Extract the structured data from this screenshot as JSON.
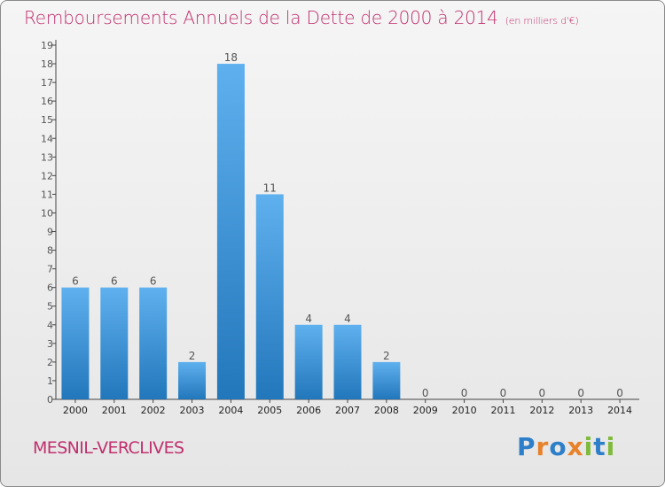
{
  "header": {
    "title": "Remboursements Annuels de la Dette de 2000 à 2014",
    "unit_note": "(en milliers d'€)"
  },
  "footer": {
    "commune": "MESNIL-VERCLIVES",
    "logo_letters": [
      "P",
      "r",
      "o",
      "x",
      "i",
      "t",
      "i"
    ],
    "logo_colors": [
      "#2e7fc9",
      "#e8822a",
      "#2e7fc9",
      "#e8822a",
      "#7fba3a",
      "#2e7fc9",
      "#7fba3a"
    ]
  },
  "colors": {
    "title": "#c0306e",
    "bar_light": "#5fb0ee",
    "bar_dark": "#2277bb"
  },
  "chart_data": {
    "type": "bar",
    "categories": [
      "2000",
      "2001",
      "2002",
      "2003",
      "2004",
      "2005",
      "2006",
      "2007",
      "2008",
      "2009",
      "2010",
      "2011",
      "2012",
      "2013",
      "2014"
    ],
    "values": [
      6,
      6,
      6,
      2,
      18,
      11,
      4,
      4,
      2,
      0,
      0,
      0,
      0,
      0,
      0
    ],
    "ylim": [
      0,
      19
    ],
    "yticks": [
      0,
      1,
      2,
      3,
      4,
      5,
      6,
      7,
      8,
      9,
      10,
      11,
      12,
      13,
      14,
      15,
      16,
      17,
      18,
      19
    ],
    "grid": false,
    "data_labels": true
  }
}
